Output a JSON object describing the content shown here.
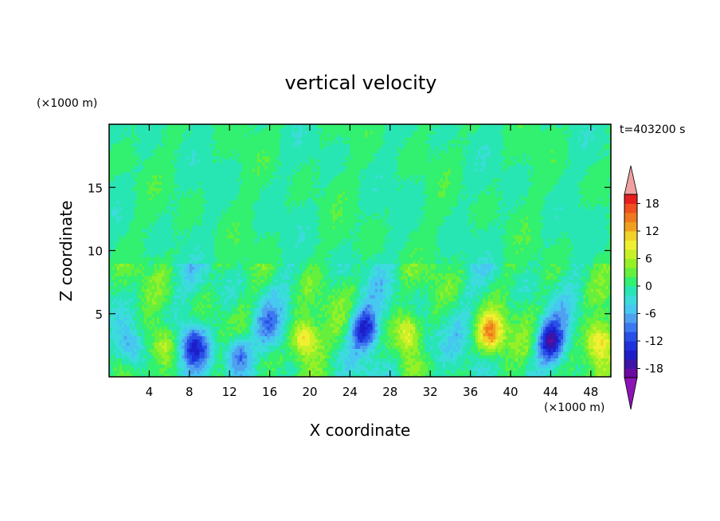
{
  "chart_data": {
    "type": "heatmap",
    "title": "vertical velocity",
    "xlabel": "X coordinate",
    "ylabel": "Z coordinate",
    "x_unit": "(×1000 m)",
    "y_unit": "(×1000 m)",
    "time_label": "t=403200 s",
    "xlim": [
      0,
      50
    ],
    "ylim": [
      0,
      20
    ],
    "x_ticks": [
      "4",
      "8",
      "12",
      "16",
      "20",
      "24",
      "28",
      "32",
      "36",
      "40",
      "44",
      "48"
    ],
    "y_ticks": [
      "5",
      "10",
      "15"
    ],
    "colorbar": {
      "levels": [
        -20,
        -18,
        -16,
        -14,
        -12,
        -10,
        -8,
        -6,
        -4,
        -2,
        0,
        2,
        4,
        6,
        8,
        10,
        12,
        14,
        16,
        18,
        20
      ],
      "tick_labels": [
        "18",
        "12",
        "6",
        "0",
        "-6",
        "-12",
        "-18"
      ],
      "colors": [
        "#6a0aa0",
        "#3c14a8",
        "#1e1ec8",
        "#1e32dc",
        "#2850e6",
        "#3c78f0",
        "#50a0f0",
        "#46c8f0",
        "#3cdcdc",
        "#28e6b4",
        "#32f070",
        "#64f03c",
        "#96f028",
        "#c8f028",
        "#f0f032",
        "#f0d228",
        "#f0a01e",
        "#f0781e",
        "#f0501e",
        "#e61e1e"
      ],
      "under_color": "#8c14b4",
      "over_color": "#f0a0a0"
    },
    "features": [
      {
        "x": 2.2,
        "z": 2.2,
        "w": -10
      },
      {
        "x": 5.5,
        "z": 2.6,
        "w": 10
      },
      {
        "x": 8.5,
        "z": 2.5,
        "w": -13
      },
      {
        "x": 12.8,
        "z": 1.8,
        "w": -12
      },
      {
        "x": 15.8,
        "z": 4.0,
        "w": -6
      },
      {
        "x": 19.5,
        "z": 3.0,
        "w": 13
      },
      {
        "x": 25.5,
        "z": 3.8,
        "w": -14
      },
      {
        "x": 29.8,
        "z": 3.6,
        "w": 9
      },
      {
        "x": 31.5,
        "z": 2.6,
        "w": -5
      },
      {
        "x": 38.0,
        "z": 3.4,
        "w": 14
      },
      {
        "x": 44.0,
        "z": 2.8,
        "w": -16
      },
      {
        "x": 48.8,
        "z": 2.8,
        "w": 12
      }
    ]
  }
}
